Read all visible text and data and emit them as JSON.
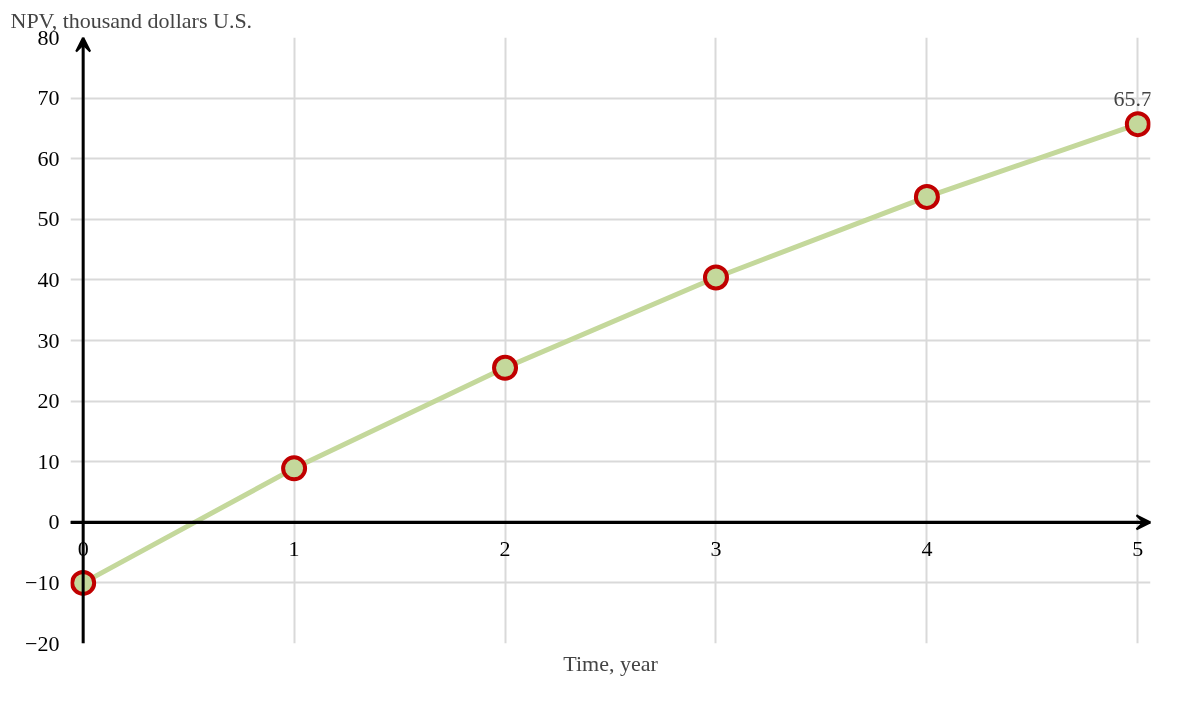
{
  "chart_data": {
    "type": "line",
    "xlabel": "Time, year",
    "ylabel": "NPV, thousand dollars U.S.",
    "x": [
      0,
      1,
      2,
      3,
      4,
      5
    ],
    "series": [
      {
        "color": "#c4d89b",
        "values": [
          -10,
          8.9,
          25.5,
          40.4,
          53.7,
          65.7
        ],
        "value_labels": [
          null,
          null,
          null,
          null,
          null,
          "65.7"
        ]
      }
    ],
    "xlim": [
      -0.06,
      5.06
    ],
    "ylim": [
      -20,
      80
    ],
    "xticks": [
      0,
      1,
      2,
      3,
      4,
      5
    ],
    "yticks": [
      -20,
      -10,
      0,
      10,
      20,
      30,
      40,
      50,
      60,
      70,
      80
    ],
    "grid": true,
    "marker": "circle",
    "line_style": "solid"
  }
}
